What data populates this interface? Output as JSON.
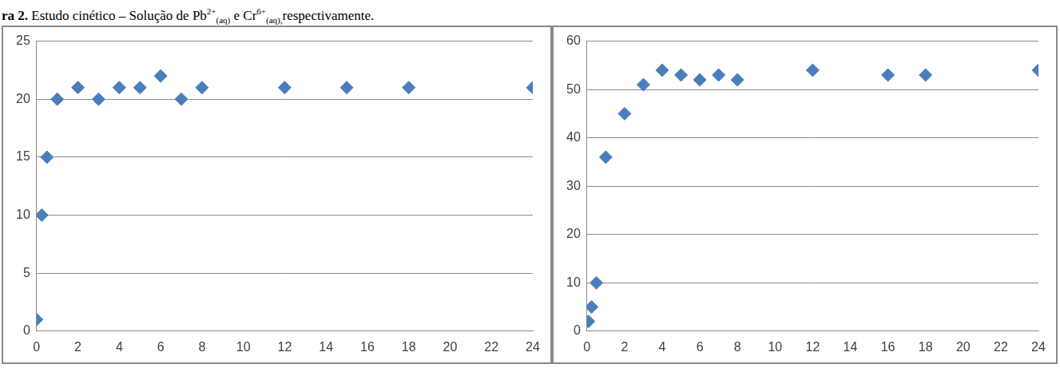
{
  "caption": [
    {
      "text": "ra 2.",
      "bold": true
    },
    {
      "text": "  Estudo cinético – Solução de Pb"
    },
    {
      "text": "2+",
      "sup": true
    },
    {
      "text": "(aq)",
      "sub": true
    },
    {
      "text": " e Cr"
    },
    {
      "text": "6+",
      "sup": true
    },
    {
      "text": "(aq),",
      "sub": true
    },
    {
      "text": "respectivamente."
    }
  ],
  "chart_data": [
    {
      "type": "scatter",
      "x": [
        0,
        0.25,
        0.5,
        1,
        2,
        3,
        4,
        5,
        6,
        7,
        8,
        12,
        15,
        18,
        24
      ],
      "values": [
        1,
        10,
        15,
        20,
        21,
        20,
        21,
        21,
        22,
        20,
        21,
        21,
        21,
        21,
        21
      ],
      "xlim": [
        0,
        24
      ],
      "xticks": [
        0,
        2,
        4,
        6,
        8,
        10,
        12,
        14,
        16,
        18,
        20,
        22,
        24
      ],
      "ylim": [
        0,
        25
      ],
      "yticks": [
        0,
        5,
        10,
        15,
        20,
        25
      ],
      "grid": true,
      "color": "#4a7ebb",
      "marker": "diamond"
    },
    {
      "type": "scatter",
      "x": [
        0.08,
        0.25,
        0.5,
        1,
        2,
        3,
        4,
        5,
        6,
        7,
        8,
        12,
        16,
        18,
        24
      ],
      "values": [
        2,
        5,
        10,
        36,
        45,
        51,
        54,
        53,
        52,
        53,
        52,
        54,
        53,
        53,
        54
      ],
      "xlim": [
        0,
        24
      ],
      "xticks": [
        0,
        2,
        4,
        6,
        8,
        10,
        12,
        14,
        16,
        18,
        20,
        22,
        24
      ],
      "ylim": [
        0,
        60
      ],
      "yticks": [
        0,
        10,
        20,
        30,
        40,
        50,
        60
      ],
      "grid": true,
      "color": "#4a7ebb",
      "marker": "diamond"
    }
  ]
}
